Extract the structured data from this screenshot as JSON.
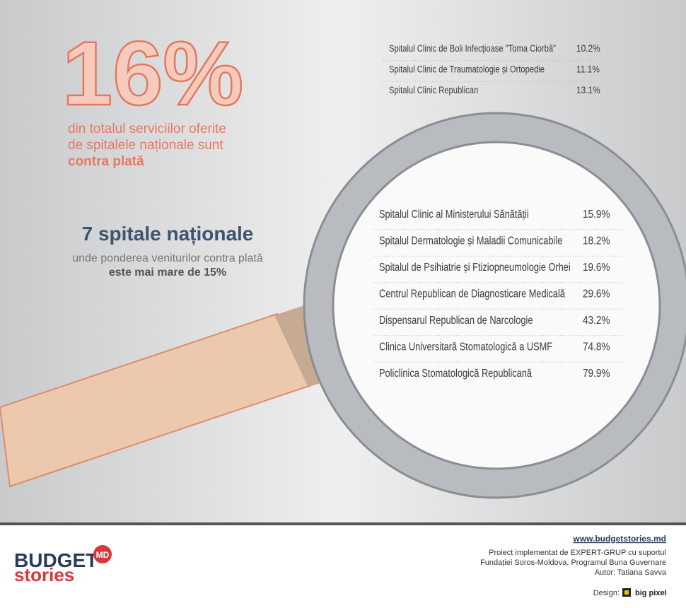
{
  "headline": {
    "big": "16%",
    "lines": [
      "din totalul serviciilor oferite",
      "de spitalele naționale sunt"
    ],
    "emphasis": "contra plată"
  },
  "subhead": {
    "title": "7 spitale naționale",
    "line1": "unde ponderea veniturilor contra plată",
    "line2": "este mai mare de 15%"
  },
  "top_list": [
    {
      "name": "Spitalul Clinic de Boli Infecțioase \"Toma Ciorbă\"",
      "value": "10.2%"
    },
    {
      "name": "Spitalul Clinic de Traumatologie și Ortopedie",
      "value": "11.1%"
    },
    {
      "name": "Spitalul Clinic Republican",
      "value": "13.1%"
    }
  ],
  "magnified_list": [
    {
      "name": "Spitalul Clinic al Ministerului Sănătății",
      "value": "15.9%"
    },
    {
      "name": "Spitalul Dermatologie și Maladii Comunicabile",
      "value": "18.2%"
    },
    {
      "name": "Spitalul de Psihiatrie și Ftiziopneumologie Orhei",
      "value": "19.6%"
    },
    {
      "name": "Centrul Republican de Diagnosticare Medicală",
      "value": "29.6%"
    },
    {
      "name": "Dispensarul Republican de Narcologie",
      "value": "43.2%"
    },
    {
      "name": "Clinica Universitară Stomatologică a USMF",
      "value": "74.8%"
    },
    {
      "name": "Policlinica Stomatologică Republicană",
      "value": "79.9%"
    }
  ],
  "logo": {
    "line1": "BUDGET",
    "line2": "stories",
    "badge": "MD"
  },
  "footer": {
    "url": "www.budgetstories.md",
    "lines": [
      "Proiect implementat de EXPERT-GRUP cu suportul",
      "Fundației Soros-Moldova, Programul Buna Guvernare",
      "Autor: Tatiana Savva"
    ],
    "design_label": "Design:",
    "design_brand": "big pixel"
  }
}
